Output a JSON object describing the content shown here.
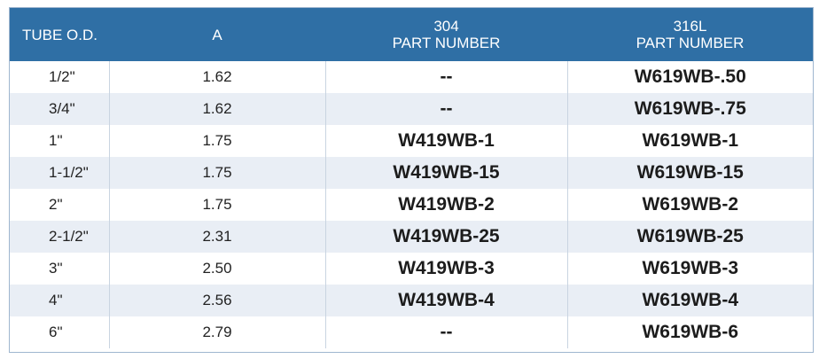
{
  "header": {
    "tube_od": "TUBE O.D.",
    "a": "A",
    "col304_line1": "304",
    "col304_line2": "PART NUMBER",
    "col316_line1": "316L",
    "col316_line2": "PART NUMBER"
  },
  "rows": [
    {
      "tube_od": "1/2\"",
      "a": "1.62",
      "p304": "--",
      "p316": "W619WB-.50"
    },
    {
      "tube_od": "3/4\"",
      "a": "1.62",
      "p304": "--",
      "p316": "W619WB-.75"
    },
    {
      "tube_od": "1\"",
      "a": "1.75",
      "p304": "W419WB-1",
      "p316": "W619WB-1"
    },
    {
      "tube_od": "1-1/2\"",
      "a": "1.75",
      "p304": "W419WB-15",
      "p316": "W619WB-15"
    },
    {
      "tube_od": "2\"",
      "a": "1.75",
      "p304": "W419WB-2",
      "p316": "W619WB-2"
    },
    {
      "tube_od": "2-1/2\"",
      "a": "2.31",
      "p304": "W419WB-25",
      "p316": "W619WB-25"
    },
    {
      "tube_od": "3\"",
      "a": "2.50",
      "p304": "W419WB-3",
      "p316": "W619WB-3"
    },
    {
      "tube_od": "4\"",
      "a": "2.56",
      "p304": "W419WB-4",
      "p316": "W619WB-4"
    },
    {
      "tube_od": "6\"",
      "a": "2.79",
      "p304": "--",
      "p316": "W619WB-6"
    }
  ],
  "colors": {
    "header_bg": "#2f6fa5",
    "stripe_bg": "#e9eef5"
  }
}
